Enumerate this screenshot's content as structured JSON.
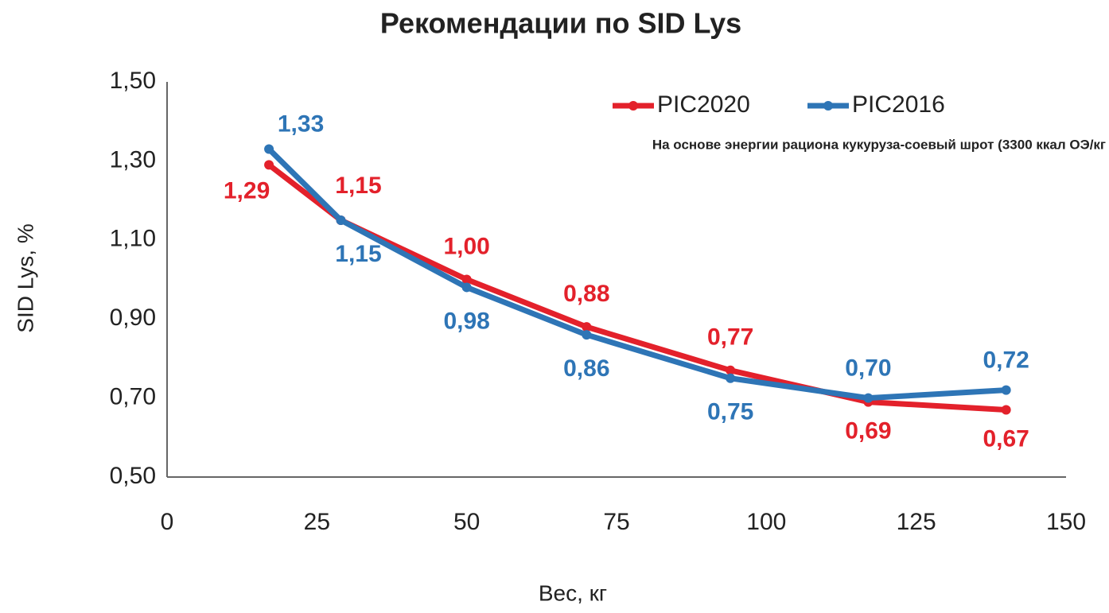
{
  "chart_data": {
    "type": "line",
    "title": "Рекомендации по SID Lys",
    "annotation": "На основе энергии рациона кукуруза-соевый шрот (3300 ккал ОЭ/кг",
    "x_label": "Вес, кг",
    "y_label": "SID Lys, %",
    "x": [
      17,
      29,
      50,
      70,
      94,
      117,
      140
    ],
    "series": [
      {
        "name": "PIC2020",
        "color": "#e3212b",
        "values": [
          1.29,
          1.15,
          1.0,
          0.88,
          0.77,
          0.69,
          0.67
        ],
        "value_labels": [
          "1,29",
          "1,15",
          "1,00",
          "0,88",
          "0,77",
          "0,69",
          "0,67"
        ]
      },
      {
        "name": "PIC2016",
        "color": "#2e75b6",
        "values": [
          1.33,
          1.15,
          0.98,
          0.86,
          0.75,
          0.7,
          0.72
        ],
        "value_labels": [
          "1,33",
          "1,15",
          "0,98",
          "0,86",
          "0,75",
          "0,70",
          "0,72"
        ]
      }
    ],
    "xlim": [
      0,
      150
    ],
    "xticks": [
      0,
      25,
      50,
      75,
      100,
      125,
      150
    ],
    "ylim": [
      0.5,
      1.5
    ],
    "yticks": [
      {
        "value": 0.5,
        "label": "0,50"
      },
      {
        "value": 0.7,
        "label": "0,70"
      },
      {
        "value": 0.9,
        "label": "0,90"
      },
      {
        "value": 1.1,
        "label": "1,10"
      },
      {
        "value": 1.3,
        "label": "1,30"
      },
      {
        "value": 1.5,
        "label": "1,50"
      }
    ],
    "grid": false,
    "legend": "top-right"
  }
}
